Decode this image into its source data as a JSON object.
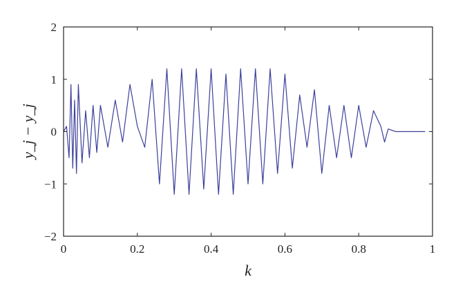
{
  "chart_data": {
    "type": "line",
    "title": "",
    "xlabel": "k",
    "ylabel": "y_j − y_j",
    "xlim": [
      0,
      1
    ],
    "ylim": [
      -2,
      2
    ],
    "x_ticks": [
      "0",
      "0.2",
      "0.4",
      "0.6",
      "0.8",
      "1"
    ],
    "y_ticks": [
      "2",
      "1",
      "0",
      "−1",
      "−2"
    ],
    "grid": false,
    "series": [
      {
        "color": "#3b3f9a",
        "x": [
          0.0,
          0.008,
          0.015,
          0.02,
          0.025,
          0.03,
          0.035,
          0.04,
          0.05,
          0.06,
          0.07,
          0.08,
          0.09,
          0.1,
          0.12,
          0.14,
          0.16,
          0.18,
          0.2,
          0.22,
          0.24,
          0.26,
          0.28,
          0.3,
          0.32,
          0.34,
          0.36,
          0.38,
          0.4,
          0.42,
          0.44,
          0.46,
          0.48,
          0.5,
          0.52,
          0.54,
          0.56,
          0.58,
          0.6,
          0.62,
          0.64,
          0.66,
          0.68,
          0.7,
          0.72,
          0.74,
          0.76,
          0.78,
          0.8,
          0.82,
          0.84,
          0.86,
          0.87,
          0.88,
          0.9,
          0.92,
          0.95,
          0.98
        ],
        "y": [
          0.0,
          0.1,
          -0.5,
          0.9,
          -0.7,
          0.6,
          -0.8,
          0.9,
          -0.6,
          0.4,
          -0.5,
          0.5,
          -0.4,
          0.5,
          -0.3,
          0.6,
          -0.2,
          0.9,
          0.1,
          -0.3,
          1.0,
          -1.0,
          1.2,
          -1.2,
          1.2,
          -1.2,
          1.2,
          -1.1,
          1.2,
          -1.2,
          1.1,
          -1.2,
          1.2,
          -1.0,
          1.2,
          -1.0,
          1.2,
          -0.8,
          1.1,
          -0.7,
          0.7,
          -0.3,
          0.8,
          -0.8,
          0.5,
          -0.5,
          0.5,
          -0.5,
          0.5,
          -0.3,
          0.4,
          0.1,
          -0.2,
          0.05,
          0.0,
          0.0,
          0.0,
          0.0
        ]
      }
    ]
  }
}
